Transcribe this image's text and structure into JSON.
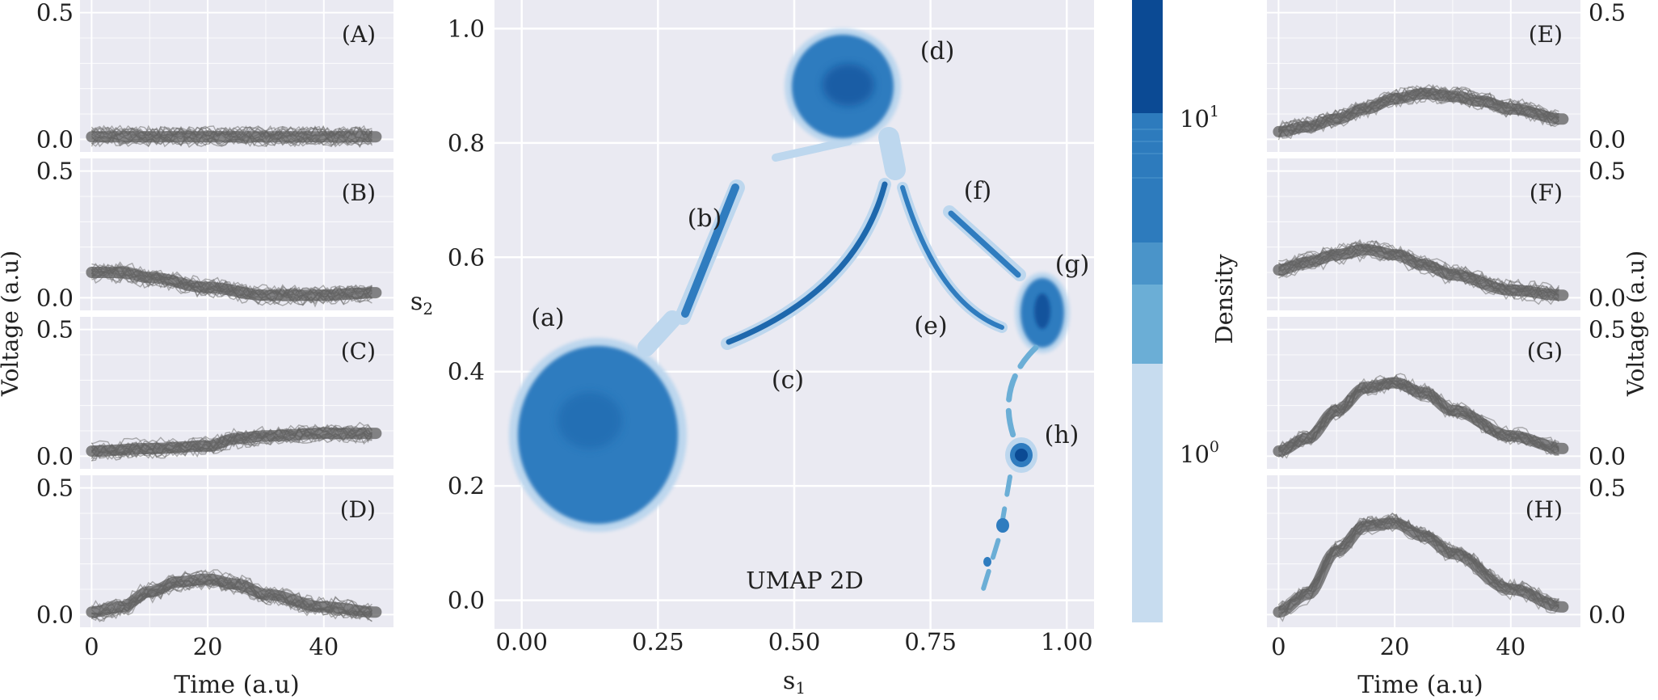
{
  "figure": {
    "left_panels": [
      {
        "label": "(A)",
        "ylim": [
          -0.05,
          0.55
        ],
        "yticks": [
          "0.0",
          "0.5"
        ],
        "gray_range": [
          0.0,
          0.0
        ]
      },
      {
        "label": "(B)",
        "ylim": [
          -0.05,
          0.55
        ],
        "yticks": [
          "0.0",
          "0.5"
        ],
        "gray_range": [
          0.1,
          0.0
        ]
      },
      {
        "label": "(C)",
        "ylim": [
          -0.05,
          0.55
        ],
        "yticks": [
          "0.0",
          "0.5"
        ],
        "gray_range": [
          0.0,
          0.1
        ]
      },
      {
        "label": "(D)",
        "ylim": [
          -0.05,
          0.55
        ],
        "yticks": [
          "0.0",
          "0.5"
        ],
        "gray_range": [
          0.0,
          0.15
        ]
      }
    ],
    "right_panels": [
      {
        "label": "(E)",
        "ylim": [
          -0.05,
          0.55
        ],
        "yticks": [
          "0.0",
          "0.5"
        ]
      },
      {
        "label": "(F)",
        "ylim": [
          -0.05,
          0.55
        ],
        "yticks": [
          "0.0",
          "0.5"
        ]
      },
      {
        "label": "(G)",
        "ylim": [
          -0.05,
          0.55
        ],
        "yticks": [
          "0.0",
          "0.5"
        ]
      },
      {
        "label": "(H)",
        "ylim": [
          -0.05,
          0.55
        ],
        "yticks": [
          "0.0",
          "0.5"
        ]
      }
    ],
    "time_xticks": [
      "0",
      "20",
      "40"
    ],
    "left_xlabel": "Time (a.u)",
    "left_ylabel": "Voltage (a.u)",
    "right_xlabel": "Time (a.u)",
    "right_ylabel": "Voltage (a.u)",
    "umap": {
      "xlabel": "s",
      "xlabel_sub": "1",
      "ylabel": "s",
      "ylabel_sub": "2",
      "xticks": [
        "0.00",
        "0.25",
        "0.50",
        "0.75",
        "1.00"
      ],
      "yticks": [
        "0.0",
        "0.2",
        "0.4",
        "0.6",
        "0.8",
        "1.0"
      ],
      "annotation": "UMAP 2D",
      "cluster_labels": [
        "(a)",
        "(b)",
        "(c)",
        "(d)",
        "(e)",
        "(f)",
        "(g)",
        "(h)"
      ]
    },
    "colorbar": {
      "label": "Density",
      "ticks": [
        {
          "base": "10",
          "exp": "1"
        },
        {
          "base": "10",
          "exp": "0"
        }
      ],
      "colors": [
        "#0b4a94",
        "#2d7bbd",
        "#4a94c9",
        "#6baed6",
        "#c7dcef"
      ]
    },
    "colors": {
      "panel_bg": "#eaeaf2",
      "grid": "#ffffff",
      "trace": "#6f6f6f",
      "density_dark": "#0b4a94",
      "density_mid": "#2f7cbf",
      "density_light": "#bdd7ee"
    }
  },
  "chart_data": [
    {
      "type": "line",
      "title": "(A)",
      "xlabel": "",
      "ylabel": "",
      "xlim": [
        -2,
        52
      ],
      "ylim": [
        -0.05,
        0.55
      ],
      "x": [
        0,
        10,
        20,
        30,
        40,
        49
      ],
      "series": [
        {
          "values": [
            0.01,
            0.01,
            0.01,
            0.01,
            0.01,
            0.01
          ]
        }
      ]
    },
    {
      "type": "line",
      "title": "(B)",
      "xlabel": "",
      "ylabel": "Voltage (a.u)",
      "xlim": [
        -2,
        52
      ],
      "ylim": [
        -0.05,
        0.55
      ],
      "x": [
        0,
        5,
        10,
        20,
        30,
        40,
        49
      ],
      "series": [
        {
          "values": [
            0.1,
            0.1,
            0.08,
            0.04,
            0.01,
            0.01,
            0.02
          ]
        }
      ]
    },
    {
      "type": "line",
      "title": "(C)",
      "xlabel": "",
      "ylabel": "",
      "xlim": [
        -2,
        52
      ],
      "ylim": [
        -0.05,
        0.55
      ],
      "x": [
        0,
        10,
        20,
        25,
        30,
        40,
        49
      ],
      "series": [
        {
          "values": [
            0.02,
            0.03,
            0.04,
            0.07,
            0.08,
            0.09,
            0.09
          ]
        }
      ]
    },
    {
      "type": "line",
      "title": "(D)",
      "xlabel": "Time (a.u)",
      "ylabel": "",
      "xlim": [
        -2,
        52
      ],
      "ylim": [
        -0.05,
        0.55
      ],
      "x": [
        0,
        5,
        10,
        15,
        20,
        25,
        30,
        40,
        49
      ],
      "series": [
        {
          "values": [
            0.01,
            0.03,
            0.09,
            0.13,
            0.14,
            0.12,
            0.08,
            0.03,
            0.01
          ]
        }
      ]
    },
    {
      "type": "heatmap",
      "title": "UMAP 2D",
      "xlabel": "s1",
      "ylabel": "s2",
      "xlim": [
        -0.05,
        1.05
      ],
      "ylim": [
        -0.05,
        1.05
      ],
      "colorbar_label": "Density",
      "colorbar_scale": "log",
      "clusters": [
        {
          "label": "(a)",
          "center": [
            0.14,
            0.3
          ],
          "rx": 0.15,
          "ry": 0.16
        },
        {
          "label": "(b)",
          "from": [
            0.3,
            0.49
          ],
          "to": [
            0.4,
            0.71
          ]
        },
        {
          "label": "(c)",
          "from": [
            0.39,
            0.39
          ],
          "to": [
            0.67,
            0.72
          ]
        },
        {
          "label": "(d)",
          "center": [
            0.6,
            0.89
          ],
          "rx": 0.09,
          "ry": 0.09
        },
        {
          "label": "(e)",
          "from": [
            0.7,
            0.72
          ],
          "to": [
            0.88,
            0.47
          ]
        },
        {
          "label": "(f)",
          "from": [
            0.79,
            0.67
          ],
          "to": [
            0.91,
            0.56
          ]
        },
        {
          "label": "(g)",
          "center": [
            0.95,
            0.5
          ],
          "rx": 0.04,
          "ry": 0.07
        },
        {
          "label": "(h)",
          "center": [
            0.92,
            0.25
          ],
          "rx": 0.02,
          "ry": 0.03
        }
      ]
    },
    {
      "type": "line",
      "title": "(E)",
      "xlabel": "",
      "ylabel": "",
      "xlim": [
        -2,
        52
      ],
      "ylim": [
        -0.05,
        0.55
      ],
      "x": [
        0,
        5,
        10,
        15,
        20,
        25,
        30,
        35,
        40,
        49
      ],
      "series": [
        {
          "values": [
            0.03,
            0.05,
            0.08,
            0.12,
            0.16,
            0.18,
            0.17,
            0.15,
            0.12,
            0.08
          ]
        }
      ]
    },
    {
      "type": "line",
      "title": "(F)",
      "xlabel": "",
      "ylabel": "",
      "xlim": [
        -2,
        52
      ],
      "ylim": [
        -0.05,
        0.55
      ],
      "x": [
        0,
        5,
        10,
        15,
        20,
        25,
        30,
        40,
        49
      ],
      "series": [
        {
          "values": [
            0.11,
            0.14,
            0.17,
            0.19,
            0.17,
            0.13,
            0.09,
            0.03,
            0.01
          ]
        }
      ]
    },
    {
      "type": "line",
      "title": "(G)",
      "xlabel": "",
      "ylabel": "Voltage (a.u)",
      "xlim": [
        -2,
        52
      ],
      "ylim": [
        -0.05,
        0.55
      ],
      "x": [
        0,
        5,
        10,
        15,
        20,
        25,
        30,
        40,
        49
      ],
      "series": [
        {
          "values": [
            0.02,
            0.07,
            0.18,
            0.27,
            0.29,
            0.25,
            0.18,
            0.08,
            0.03
          ]
        }
      ]
    },
    {
      "type": "line",
      "title": "(H)",
      "xlabel": "Time (a.u)",
      "ylabel": "",
      "xlim": [
        -2,
        52
      ],
      "ylim": [
        -0.05,
        0.55
      ],
      "x": [
        0,
        5,
        10,
        15,
        20,
        25,
        30,
        40,
        49
      ],
      "series": [
        {
          "values": [
            0.01,
            0.08,
            0.25,
            0.35,
            0.36,
            0.31,
            0.24,
            0.1,
            0.03
          ]
        }
      ]
    }
  ]
}
